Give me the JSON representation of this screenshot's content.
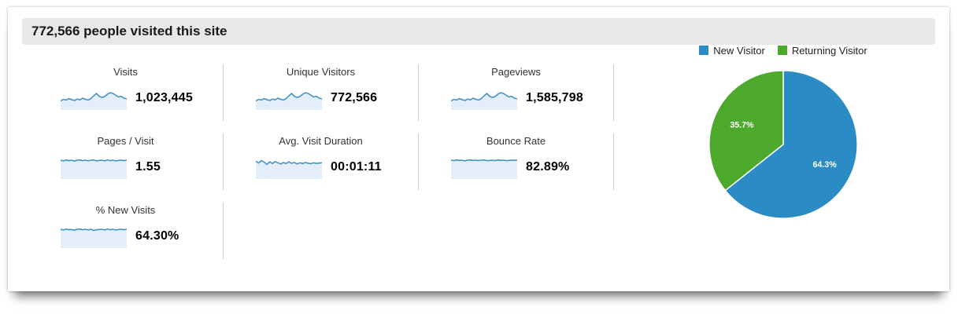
{
  "header": {
    "title": "772,566 people visited this site"
  },
  "metrics": [
    {
      "label": "Visits",
      "value": "1,023,445",
      "spark": [
        0.62,
        0.55,
        0.58,
        0.52,
        0.56,
        0.6,
        0.54,
        0.57,
        0.5,
        0.55,
        0.58,
        0.52,
        0.4,
        0.3,
        0.42,
        0.47,
        0.43,
        0.33,
        0.27,
        0.3,
        0.38,
        0.45,
        0.42,
        0.5,
        0.53
      ]
    },
    {
      "label": "Unique Visitors",
      "value": "772,566",
      "spark": [
        0.62,
        0.55,
        0.58,
        0.52,
        0.56,
        0.6,
        0.54,
        0.57,
        0.5,
        0.55,
        0.58,
        0.52,
        0.4,
        0.3,
        0.42,
        0.47,
        0.43,
        0.33,
        0.27,
        0.3,
        0.38,
        0.45,
        0.42,
        0.5,
        0.53
      ]
    },
    {
      "label": "Pageviews",
      "value": "1,585,798",
      "spark": [
        0.62,
        0.55,
        0.58,
        0.52,
        0.56,
        0.6,
        0.54,
        0.57,
        0.5,
        0.55,
        0.58,
        0.52,
        0.4,
        0.3,
        0.42,
        0.47,
        0.43,
        0.33,
        0.27,
        0.3,
        0.38,
        0.45,
        0.42,
        0.5,
        0.53
      ]
    },
    {
      "label": "Pages / Visit",
      "value": "1.55",
      "spark": [
        0.2,
        0.23,
        0.19,
        0.22,
        0.2,
        0.24,
        0.2,
        0.19,
        0.22,
        0.2,
        0.23,
        0.2,
        0.19,
        0.23,
        0.21,
        0.2,
        0.23,
        0.19,
        0.22,
        0.2,
        0.23,
        0.21,
        0.2,
        0.22,
        0.2
      ]
    },
    {
      "label": "Avg. Visit Duration",
      "value": "00:01:11",
      "spark": [
        0.24,
        0.32,
        0.22,
        0.28,
        0.38,
        0.27,
        0.34,
        0.26,
        0.31,
        0.36,
        0.3,
        0.34,
        0.27,
        0.33,
        0.3,
        0.36,
        0.31,
        0.34,
        0.3,
        0.33,
        0.35,
        0.31,
        0.34,
        0.32,
        0.31
      ]
    },
    {
      "label": "Bounce Rate",
      "value": "82.89%",
      "spark": [
        0.2,
        0.22,
        0.19,
        0.21,
        0.2,
        0.23,
        0.2,
        0.19,
        0.21,
        0.2,
        0.22,
        0.2,
        0.19,
        0.22,
        0.21,
        0.2,
        0.22,
        0.19,
        0.21,
        0.2,
        0.22,
        0.21,
        0.2,
        0.21,
        0.2
      ]
    },
    {
      "label": "% New Visits",
      "value": "64.30%",
      "spark": [
        0.2,
        0.23,
        0.19,
        0.22,
        0.21,
        0.24,
        0.2,
        0.19,
        0.22,
        0.2,
        0.23,
        0.2,
        0.25,
        0.22,
        0.21,
        0.2,
        0.23,
        0.19,
        0.22,
        0.2,
        0.23,
        0.21,
        0.2,
        0.22,
        0.2
      ]
    }
  ],
  "chart_data": {
    "type": "pie",
    "title": "",
    "legend_position": "top",
    "labels_format": "percent",
    "slices": [
      {
        "label": "New Visitor",
        "value": 64.3,
        "display": "64.3%",
        "color": "#2b8bc4"
      },
      {
        "label": "Returning Visitor",
        "value": 35.7,
        "display": "35.7%",
        "color": "#4ca92b"
      }
    ]
  },
  "colors": {
    "spark_line": "#4292c6",
    "spark_fill": "#e4eef8",
    "divider": "#cccccc",
    "header_bg": "#e8e8e8"
  }
}
